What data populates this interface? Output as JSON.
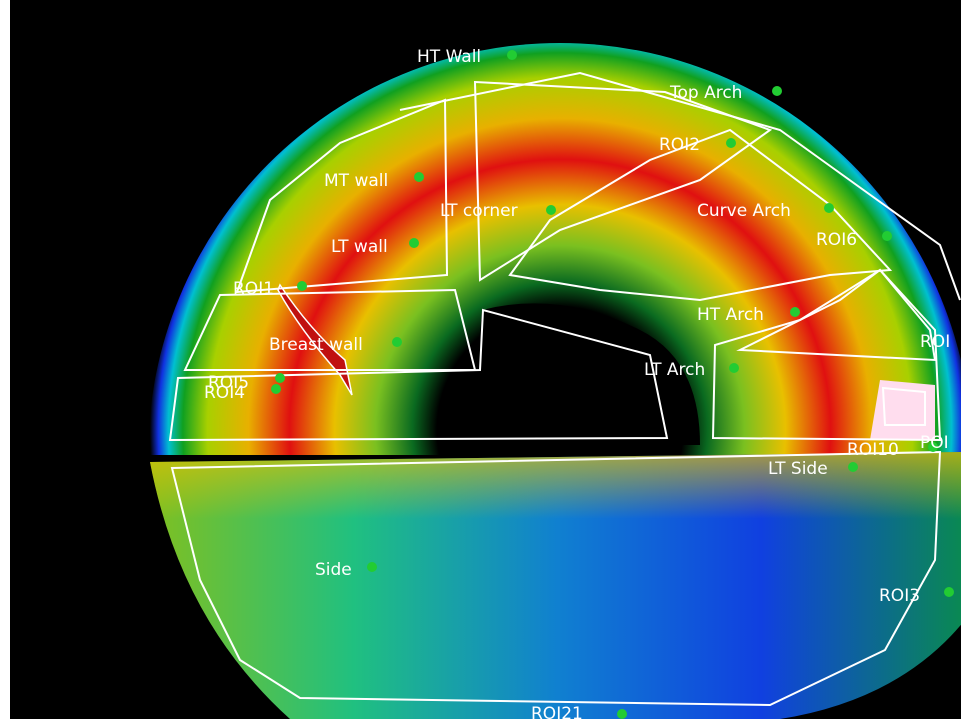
{
  "labels": [
    "HT Wall",
    "Top Arch",
    "ROI2",
    "MT wall",
    "LT corner",
    "Curve Arch",
    "ROI6",
    "LT wall",
    "ROI1",
    "Breast wall",
    "HT Arch",
    "ROI",
    "LT Arch",
    "ROI5",
    "ROI4",
    "ROI10",
    "POI",
    "LT Side",
    "Side",
    "ROI3",
    "ROI21"
  ]
}
